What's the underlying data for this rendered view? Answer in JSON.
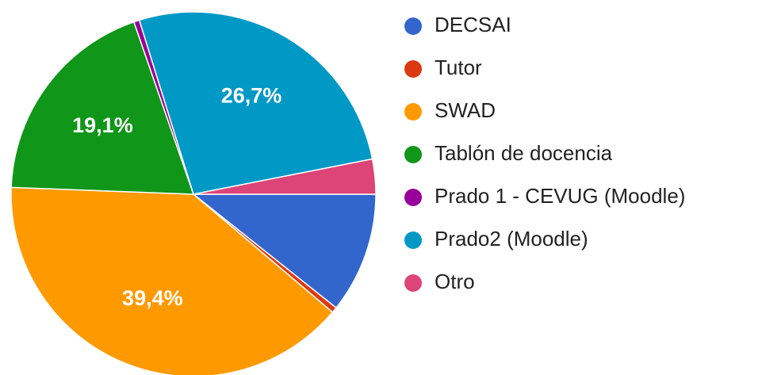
{
  "chart_data": {
    "type": "pie",
    "categories": [
      "DECSAI",
      "Tutor",
      "SWAD",
      "Tablón de docencia",
      "Prado 1 - CEVUG (Moodle)",
      "Prado2 (Moodle)",
      "Otro"
    ],
    "values": [
      10.7,
      0.5,
      39.4,
      19.1,
      0.5,
      26.7,
      3.1
    ],
    "value_labels": [
      null,
      null,
      "39,4%",
      "19,1%",
      null,
      "26,7%",
      null
    ],
    "colors": [
      "#3366cc",
      "#dc3912",
      "#ff9900",
      "#109618",
      "#990099",
      "#0099c6",
      "#dd4477"
    ],
    "legend": "right"
  }
}
